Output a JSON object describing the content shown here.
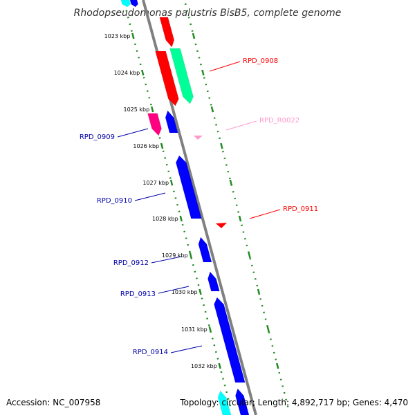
{
  "title": "Rhodopseudomonas palustris BisB5, complete genome",
  "footer": {
    "accession": "Accession: NC_007958",
    "summary": "Topology: circular; Length: 4,892,717 bp; Genes: 4,470"
  },
  "colors": {
    "backbone": "#808080",
    "tick_marks": "#228b22",
    "forward_gene": "#0000ff",
    "reverse_gene": "#ff0000",
    "highlight_green": "#00ff99",
    "highlight_magenta": "#ff0080",
    "rna_gene": "#ff99cc",
    "cyan_gene": "#00ffff"
  },
  "ticks": [
    {
      "kbp": 1023,
      "label": "1023 kbp"
    },
    {
      "kbp": 1024,
      "label": "1024 kbp"
    },
    {
      "kbp": 1025,
      "label": "1025 kbp"
    },
    {
      "kbp": 1026,
      "label": "1026 kbp"
    },
    {
      "kbp": 1027,
      "label": "1027 kbp"
    },
    {
      "kbp": 1028,
      "label": "1028 kbp"
    },
    {
      "kbp": 1029,
      "label": "1029 kbp"
    },
    {
      "kbp": 1030,
      "label": "1030 kbp"
    },
    {
      "kbp": 1031,
      "label": "1031 kbp"
    },
    {
      "kbp": 1032,
      "label": "1032 kbp"
    }
  ],
  "gene_labels": [
    {
      "text": "RPD_0908",
      "color": "#ff0000"
    },
    {
      "text": "RPD_R0022",
      "color": "#ff99cc"
    },
    {
      "text": "RPD_0909",
      "color": "#0000aa"
    },
    {
      "text": "RPD_0910",
      "color": "#0000aa"
    },
    {
      "text": "RPD_0911",
      "color": "#ff0000"
    },
    {
      "text": "RPD_0912",
      "color": "#0000aa"
    },
    {
      "text": "RPD_0913",
      "color": "#0000aa"
    },
    {
      "text": "RPD_0914",
      "color": "#0000aa"
    }
  ]
}
